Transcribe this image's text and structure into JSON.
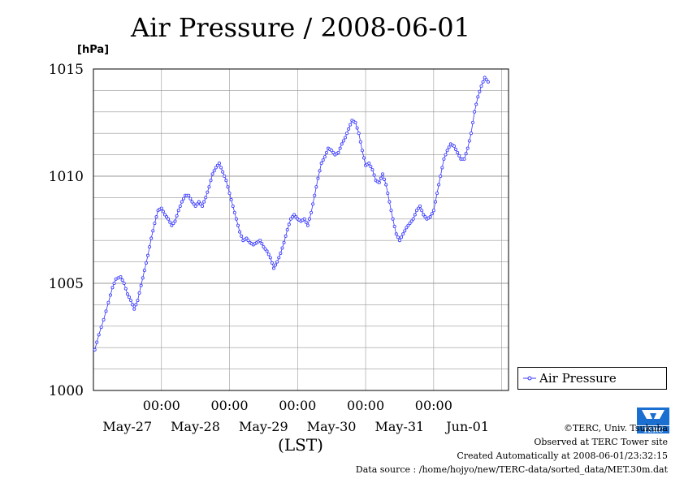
{
  "chart_data": {
    "type": "line",
    "title": "Air Pressure / 2008-06-01",
    "ylabel": "[hPa]",
    "xlabel": "(LST)",
    "ylim": [
      1000,
      1015
    ],
    "yticks": [
      1000,
      1005,
      1010,
      1015
    ],
    "xlim_days": [
      0,
      6.1
    ],
    "xticks": [
      {
        "day": 1.0,
        "time": "00:00",
        "date": "May-27"
      },
      {
        "day": 2.0,
        "time": "00:00",
        "date": "May-28"
      },
      {
        "day": 3.0,
        "time": "00:00",
        "date": "May-29"
      },
      {
        "day": 4.0,
        "time": "00:00",
        "date": "May-30"
      },
      {
        "day": 5.0,
        "time": "00:00",
        "date": "May-31"
      },
      {
        "day": 6.0,
        "time": "",
        "date": "Jun-01"
      }
    ],
    "grid": true,
    "legend_position": "bottom-right",
    "series": [
      {
        "name": "Air Pressure",
        "color": "#3333ff",
        "points": [
          [
            0.02,
            1001.9
          ],
          [
            0.08,
            1002.6
          ],
          [
            0.15,
            1003.3
          ],
          [
            0.22,
            1004.1
          ],
          [
            0.28,
            1004.8
          ],
          [
            0.33,
            1005.2
          ],
          [
            0.4,
            1005.3
          ],
          [
            0.45,
            1005.0
          ],
          [
            0.5,
            1004.5
          ],
          [
            0.55,
            1004.2
          ],
          [
            0.6,
            1003.8
          ],
          [
            0.65,
            1004.2
          ],
          [
            0.7,
            1004.9
          ],
          [
            0.75,
            1005.6
          ],
          [
            0.8,
            1006.3
          ],
          [
            0.85,
            1007.1
          ],
          [
            0.9,
            1007.8
          ],
          [
            0.95,
            1008.4
          ],
          [
            1.0,
            1008.5
          ],
          [
            1.05,
            1008.2
          ],
          [
            1.1,
            1008.0
          ],
          [
            1.15,
            1007.7
          ],
          [
            1.2,
            1007.9
          ],
          [
            1.25,
            1008.4
          ],
          [
            1.3,
            1008.8
          ],
          [
            1.35,
            1009.1
          ],
          [
            1.4,
            1009.1
          ],
          [
            1.45,
            1008.8
          ],
          [
            1.5,
            1008.6
          ],
          [
            1.55,
            1008.8
          ],
          [
            1.6,
            1008.6
          ],
          [
            1.65,
            1009.0
          ],
          [
            1.7,
            1009.5
          ],
          [
            1.75,
            1010.1
          ],
          [
            1.8,
            1010.4
          ],
          [
            1.85,
            1010.6
          ],
          [
            1.9,
            1010.2
          ],
          [
            1.95,
            1009.8
          ],
          [
            2.0,
            1009.2
          ],
          [
            2.05,
            1008.6
          ],
          [
            2.1,
            1008.0
          ],
          [
            2.15,
            1007.4
          ],
          [
            2.2,
            1007.0
          ],
          [
            2.25,
            1007.1
          ],
          [
            2.3,
            1006.9
          ],
          [
            2.35,
            1006.8
          ],
          [
            2.4,
            1006.9
          ],
          [
            2.45,
            1007.0
          ],
          [
            2.5,
            1006.7
          ],
          [
            2.55,
            1006.5
          ],
          [
            2.6,
            1006.2
          ],
          [
            2.65,
            1005.7
          ],
          [
            2.7,
            1006.0
          ],
          [
            2.75,
            1006.4
          ],
          [
            2.8,
            1006.9
          ],
          [
            2.85,
            1007.5
          ],
          [
            2.9,
            1008.0
          ],
          [
            2.95,
            1008.2
          ],
          [
            3.0,
            1008.0
          ],
          [
            3.05,
            1007.9
          ],
          [
            3.1,
            1008.0
          ],
          [
            3.15,
            1007.7
          ],
          [
            3.2,
            1008.3
          ],
          [
            3.25,
            1009.1
          ],
          [
            3.3,
            1009.9
          ],
          [
            3.35,
            1010.6
          ],
          [
            3.4,
            1010.9
          ],
          [
            3.45,
            1011.3
          ],
          [
            3.5,
            1011.2
          ],
          [
            3.55,
            1011.0
          ],
          [
            3.6,
            1011.1
          ],
          [
            3.65,
            1011.5
          ],
          [
            3.7,
            1011.8
          ],
          [
            3.75,
            1012.2
          ],
          [
            3.8,
            1012.6
          ],
          [
            3.85,
            1012.5
          ],
          [
            3.9,
            1012.0
          ],
          [
            3.95,
            1011.2
          ],
          [
            4.0,
            1010.5
          ],
          [
            4.05,
            1010.6
          ],
          [
            4.1,
            1010.3
          ],
          [
            4.15,
            1009.8
          ],
          [
            4.2,
            1009.7
          ],
          [
            4.25,
            1010.1
          ],
          [
            4.3,
            1009.6
          ],
          [
            4.35,
            1008.8
          ],
          [
            4.4,
            1008.0
          ],
          [
            4.45,
            1007.3
          ],
          [
            4.5,
            1007.0
          ],
          [
            4.55,
            1007.3
          ],
          [
            4.6,
            1007.6
          ],
          [
            4.65,
            1007.8
          ],
          [
            4.7,
            1008.0
          ],
          [
            4.75,
            1008.4
          ],
          [
            4.8,
            1008.6
          ],
          [
            4.85,
            1008.2
          ],
          [
            4.9,
            1008.0
          ],
          [
            4.95,
            1008.1
          ],
          [
            5.0,
            1008.4
          ],
          [
            5.05,
            1009.2
          ],
          [
            5.1,
            1010.0
          ],
          [
            5.15,
            1010.8
          ],
          [
            5.2,
            1011.2
          ],
          [
            5.25,
            1011.5
          ],
          [
            5.3,
            1011.4
          ],
          [
            5.35,
            1011.1
          ],
          [
            5.4,
            1010.8
          ],
          [
            5.45,
            1010.8
          ],
          [
            5.5,
            1011.3
          ],
          [
            5.55,
            1012.0
          ],
          [
            5.6,
            1013.0
          ],
          [
            5.65,
            1013.7
          ],
          [
            5.7,
            1014.2
          ],
          [
            5.75,
            1014.6
          ],
          [
            5.8,
            1014.4
          ]
        ]
      }
    ]
  },
  "legend": {
    "label": "Air Pressure"
  },
  "logo": {
    "name": "TERC"
  },
  "credits": [
    "©TERC, Univ. Tsukuba",
    "Observed at TERC Tower site",
    "Created Automatically at 2008-06-01/23:32:15",
    "Data source : /home/hojyo/new/TERC-data/sorted_data/MET.30m.dat"
  ]
}
